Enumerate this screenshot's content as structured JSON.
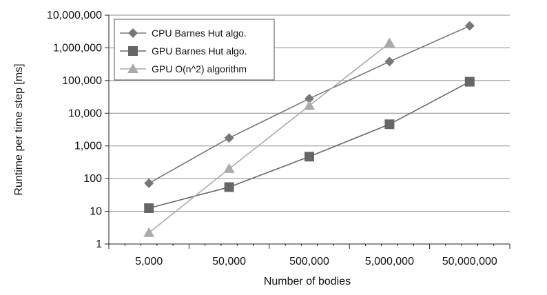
{
  "chart_data": {
    "type": "line",
    "title": "",
    "xlabel": "Number of bodies",
    "ylabel": "Runtime per time step [ms]",
    "categories": [
      "5,000",
      "50,000",
      "500,000",
      "5,000,000",
      "50,000,000"
    ],
    "x": [
      5000,
      50000,
      500000,
      5000000,
      50000000
    ],
    "y_scale": "log",
    "ylim": [
      1,
      10000000
    ],
    "y_ticks": [
      1,
      10,
      100,
      1000,
      10000,
      100000,
      1000000,
      10000000
    ],
    "y_tick_labels": [
      "1",
      "10",
      "100",
      "1,000",
      "10,000",
      "100,000",
      "1,000,000",
      "10,000,000"
    ],
    "grid": "horizontal",
    "legend_position": "top-left",
    "series": [
      {
        "name": "CPU Barnes Hut algo.",
        "marker": "diamond",
        "color": "#777777",
        "x": [
          5000,
          50000,
          500000,
          5000000,
          50000000
        ],
        "values": [
          72,
          1750,
          28000,
          380000,
          4700000
        ]
      },
      {
        "name": "GPU Barnes Hut algo.",
        "marker": "square",
        "color": "#666666",
        "x": [
          5000,
          50000,
          500000,
          5000000,
          50000000
        ],
        "values": [
          12.5,
          55,
          470,
          4600,
          92000
        ]
      },
      {
        "name": "GPU O(n^2) algorithm",
        "marker": "triangle",
        "color": "#aaaaaa",
        "x": [
          5000,
          50000,
          500000,
          5000000
        ],
        "values": [
          2.2,
          200,
          17000,
          1400000
        ]
      }
    ]
  }
}
